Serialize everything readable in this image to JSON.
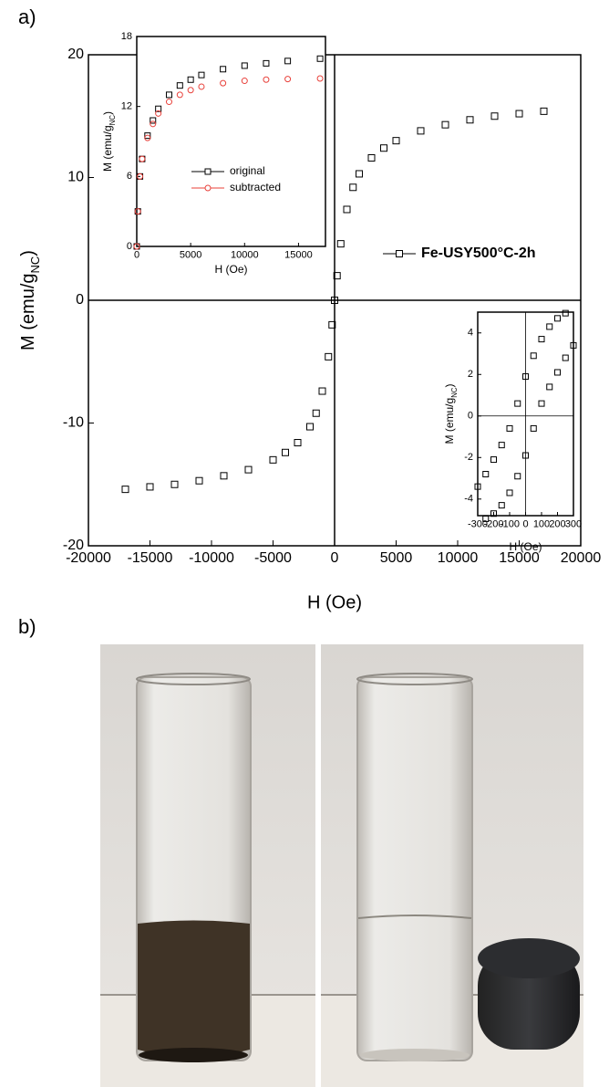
{
  "panels": {
    "a": "a)",
    "b": "b)"
  },
  "chart_data": [
    {
      "type": "scatter",
      "xlabel": "H (Oe)",
      "ylabel": [
        "M (emu/g",
        "NC",
        ")"
      ],
      "xlim": [
        -20000,
        20000
      ],
      "ylim": [
        -20,
        20
      ],
      "xticks": [
        -20000,
        -15000,
        -10000,
        -5000,
        0,
        5000,
        10000,
        15000,
        20000
      ],
      "yticks": [
        -20,
        -10,
        0,
        10,
        20
      ],
      "zero_lines": true,
      "legend": "center right",
      "x": [
        -17000,
        -15000,
        -13000,
        -11000,
        -9000,
        -7000,
        -5000,
        -4000,
        -3000,
        -2000,
        -1500,
        -1000,
        -500,
        -200,
        0,
        200,
        500,
        1000,
        1500,
        2000,
        3000,
        4000,
        5000,
        7000,
        9000,
        11000,
        13000,
        15000,
        17000
      ],
      "series": [
        {
          "name": "Fe-USY500°C-2h",
          "color": "#000000",
          "marker": "square",
          "values": [
            -15.4,
            -15.2,
            -15.0,
            -14.7,
            -14.3,
            -13.8,
            -13.0,
            -12.4,
            -11.6,
            -10.3,
            -9.2,
            -7.4,
            -4.6,
            -2.0,
            0,
            2.0,
            4.6,
            7.4,
            9.2,
            10.3,
            11.6,
            12.4,
            13.0,
            13.8,
            14.3,
            14.7,
            15.0,
            15.2,
            15.4
          ]
        }
      ]
    },
    {
      "type": "scatter",
      "xlabel": "H (Oe)",
      "ylabel": [
        "M (emu/g",
        "NC",
        ")"
      ],
      "xlim": [
        0,
        17500
      ],
      "ylim": [
        0,
        18
      ],
      "xticks": [
        0,
        5000,
        10000,
        15000
      ],
      "yticks": [
        0,
        6,
        12,
        18
      ],
      "zero_lines": false,
      "legend": "center",
      "x": [
        0,
        100,
        300,
        500,
        1000,
        1500,
        2000,
        3000,
        4000,
        5000,
        6000,
        8000,
        10000,
        12000,
        14000,
        17000
      ],
      "series": [
        {
          "name": "original",
          "color": "#000000",
          "marker": "square",
          "values": [
            0,
            3,
            6,
            7.5,
            9.5,
            10.8,
            11.8,
            13,
            13.8,
            14.3,
            14.7,
            15.2,
            15.5,
            15.7,
            15.9,
            16.1
          ]
        },
        {
          "name": "subtracted",
          "color": "#e8403a",
          "marker": "circle",
          "values": [
            0,
            3,
            6,
            7.5,
            9.3,
            10.5,
            11.4,
            12.4,
            13,
            13.4,
            13.7,
            14,
            14.2,
            14.3,
            14.35,
            14.4
          ]
        }
      ]
    },
    {
      "type": "scatter",
      "xlabel": "H (Oe)",
      "ylabel": [
        "M (emu/g",
        "NC",
        ")"
      ],
      "xlim": [
        -300,
        300
      ],
      "ylim": [
        -4.8,
        5.0
      ],
      "xticks": [
        -300,
        -200,
        -100,
        0,
        100,
        200,
        300
      ],
      "yticks": [
        -4,
        -2,
        0,
        2,
        4
      ],
      "zero_lines": true,
      "x": [
        -300,
        -250,
        -200,
        -150,
        -100,
        -50,
        0,
        50,
        100,
        150,
        200,
        250,
        300
      ],
      "series": [
        {
          "color": "#000000",
          "marker": "square",
          "values": [
            -3.4,
            -2.8,
            -2.1,
            -1.4,
            -0.6,
            0.6,
            1.9,
            2.9,
            3.7,
            4.3,
            4.7,
            4.95,
            null
          ]
        },
        {
          "color": "#000000",
          "marker": "square",
          "values": [
            null,
            -4.95,
            -4.7,
            -4.3,
            -3.7,
            -2.9,
            -1.9,
            -0.6,
            0.6,
            1.4,
            2.1,
            2.8,
            3.4
          ]
        }
      ]
    }
  ]
}
